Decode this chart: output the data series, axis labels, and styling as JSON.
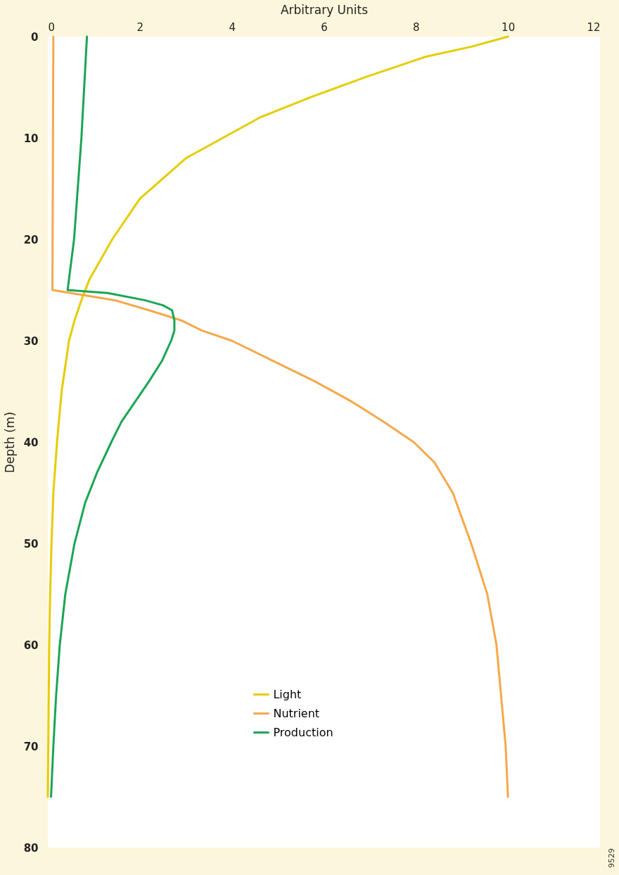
{
  "chart_data": {
    "type": "line",
    "orientation": "horizontal",
    "xlabel": "Arbitrary Units",
    "ylabel": "Depth (m)",
    "xlim": [
      0,
      12
    ],
    "xticks": [
      0,
      2,
      4,
      6,
      8,
      10,
      12
    ],
    "ylim": [
      80,
      0
    ],
    "yticks": [
      0,
      10,
      20,
      30,
      40,
      50,
      60,
      70,
      80
    ],
    "grid": false,
    "legend": "bottom",
    "line_style": "solid",
    "marker": "none",
    "annotations": [
      "9529"
    ],
    "series": [
      {
        "name": "Light",
        "color": "#e6cc00",
        "x": [
          0,
          1,
          2,
          4,
          6,
          8,
          10,
          12,
          14,
          16,
          18,
          20,
          22,
          24,
          26,
          28,
          30,
          35,
          40,
          45,
          50,
          55,
          60,
          65,
          70,
          75
        ],
        "values": [
          10,
          9.2,
          8.2,
          6.9,
          5.7,
          4.6,
          3.8,
          3.0,
          2.5,
          2.0,
          1.7,
          1.4,
          1.15,
          0.9,
          0.73,
          0.58,
          0.46,
          0.3,
          0.2,
          0.12,
          0.08,
          0.05,
          0.03,
          0.02,
          0.01,
          0
        ]
      },
      {
        "name": "Nutrient",
        "color": "#f5a84a",
        "x": [
          0,
          25,
          26,
          27,
          28,
          29,
          30,
          32,
          34,
          36,
          38,
          40,
          42,
          45,
          50,
          55,
          60,
          65,
          70,
          75
        ],
        "values": [
          0.12,
          0.1,
          1.45,
          2.2,
          2.9,
          3.35,
          4.0,
          4.9,
          5.8,
          6.6,
          7.3,
          7.95,
          8.4,
          8.8,
          9.2,
          9.55,
          9.75,
          9.85,
          9.95,
          10.0
        ]
      },
      {
        "name": "Production",
        "color": "#1aa554",
        "x": [
          0,
          10,
          20,
          25,
          25.3,
          26,
          26.5,
          27,
          28,
          29,
          30,
          32,
          34,
          36,
          38,
          40,
          43,
          46,
          50,
          55,
          60,
          65,
          70,
          75
        ],
        "values": [
          0.85,
          0.73,
          0.57,
          0.43,
          1.3,
          2.1,
          2.5,
          2.7,
          2.75,
          2.75,
          2.68,
          2.48,
          2.2,
          1.9,
          1.6,
          1.38,
          1.07,
          0.81,
          0.58,
          0.38,
          0.26,
          0.18,
          0.12,
          0.07
        ]
      }
    ]
  }
}
